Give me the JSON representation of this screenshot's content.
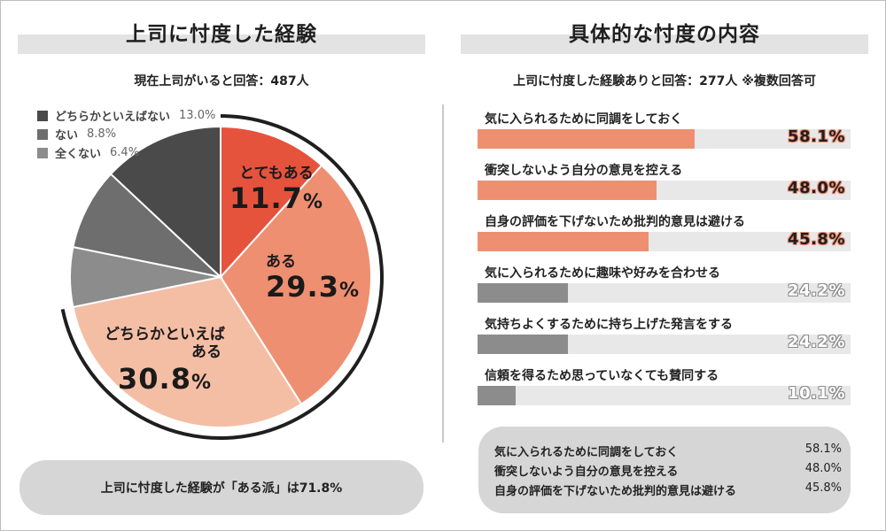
{
  "left": {
    "title": "上司に忖度した経験",
    "subtitle": "現在上司がいると回答：487人",
    "footer": "上司に忖度した経験が「ある派」は71.8%"
  },
  "right": {
    "title": "具体的な忖度の内容",
    "subtitle": "上司に忖度した経験ありと回答：277人 ※複数回答可",
    "summary": [
      {
        "label": "気に入られるために同調をしておく",
        "value": "58.1%"
      },
      {
        "label": "衝突しないよう自分の意見を控える",
        "value": "48.0%"
      },
      {
        "label": "自身の評価を下げないため批判的意見は避ける",
        "value": "45.8%"
      }
    ]
  },
  "chart_data": [
    {
      "type": "pie",
      "title": "上司に忖度した経験",
      "slices": [
        {
          "label": "とてもある",
          "value": 11.7,
          "display_value": "11.7",
          "color": "#e5533d"
        },
        {
          "label": "ある",
          "value": 29.3,
          "display_value": "29.3",
          "color": "#ee8f72"
        },
        {
          "label": "どちらかといえばある",
          "label_lines": [
            "どちらかといえば",
            "ある"
          ],
          "value": 30.8,
          "display_value": "30.8",
          "color": "#f4bea5"
        },
        {
          "label": "全くない",
          "value": 6.4,
          "legend_text": "6.4%",
          "color": "#8c8c8c"
        },
        {
          "label": "ない",
          "value": 8.8,
          "legend_text": "8.8%",
          "color": "#6e6e6e"
        },
        {
          "label": "どちらかといえばない",
          "value": 13.0,
          "legend_text": "13.0%",
          "color": "#4a4a4a"
        }
      ],
      "legend": [
        {
          "label": "どちらかといえばない",
          "value": "13.0%",
          "color": "#4a4a4a"
        },
        {
          "label": "ない",
          "value": "8.8%",
          "color": "#6e6e6e"
        },
        {
          "label": "全くない",
          "value": "6.4%",
          "color": "#8c8c8c"
        }
      ],
      "unit": "%"
    },
    {
      "type": "bar",
      "title": "具体的な忖度の内容",
      "orientation": "horizontal",
      "categories": [
        "気に入られるために同調をしておく",
        "衝突しないよう自分の意見を控える",
        "自身の評価を下げないため批判的意見は避ける",
        "気に入られるために趣味や好みを合わせる",
        "気持ちよくするために持ち上げた発言をする",
        "信頼を得るため思っていなくても賛同する"
      ],
      "values": [
        58.1,
        48.0,
        45.8,
        24.2,
        24.2,
        10.1
      ],
      "value_labels": [
        "58.1%",
        "48.0%",
        "45.8%",
        "24.2%",
        "24.2%",
        "10.1%"
      ],
      "colors": [
        "#ee8f72",
        "#ee8f72",
        "#ee8f72",
        "#8c8c8c",
        "#8c8c8c",
        "#8c8c8c"
      ],
      "label_colors": [
        "#1f1f1f",
        "#1f1f1f",
        "#1f1f1f",
        "#ffffff",
        "#ffffff",
        "#ffffff"
      ],
      "xlim": [
        0,
        100
      ]
    }
  ]
}
